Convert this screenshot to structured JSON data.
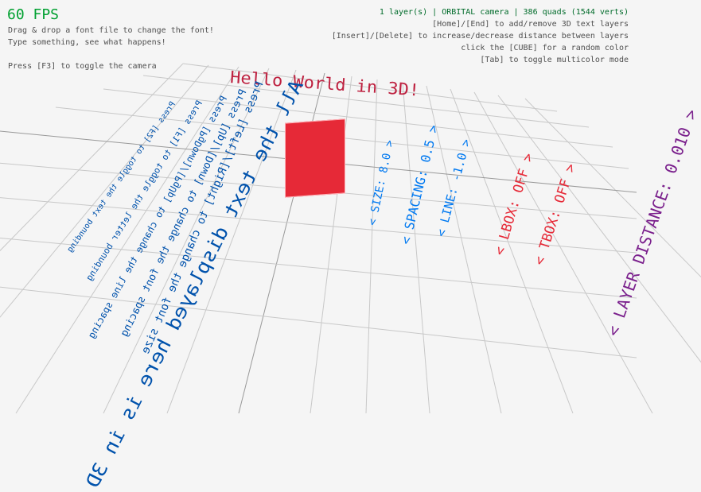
{
  "hud": {
    "fps": "60 FPS",
    "help_left": [
      "Drag & drop a font file to change the font!",
      "Type something, see what happens!",
      "Press [F3] to toggle the camera"
    ],
    "status": "1 layer(s) | ORBITAL camera |  386 quads (1544 verts)",
    "help_right": [
      "[Home]/[End] to add/remove 3D text layers",
      "[Insert]/[Delete] to increase/decrease distance between layers",
      "click the [CUBE] for a random color",
      "[Tab] to toggle multicolor mode"
    ]
  },
  "scene": {
    "title_text": "Hello World in 3D!",
    "main_text": "All the text displayed here is in 3D",
    "instructions": [
      "Press [F2] to toggle the text bounding",
      "Press [F1] to toggle the letter bounding",
      "Press [PgDown]/[PgUp] to change the line spacing",
      "Press [Up]/[Down] to change the font spacing",
      "Press [Left]/[Right] to change the font size"
    ],
    "settings": [
      {
        "label": "< SIZE: 8.0 >",
        "color": "#0079f1"
      },
      {
        "label": "< SPACING: 0.5 >",
        "color": "#0079f1"
      },
      {
        "label": "< LINE: -1.0 >",
        "color": "#0079f1"
      },
      {
        "label": "< LBOX: OFF >",
        "color": "#e62937"
      },
      {
        "label": "< TBOX: OFF >",
        "color": "#e62937"
      },
      {
        "label": "< LAYER DISTANCE: 0.010 >",
        "color": "#7a1f8c"
      }
    ],
    "cube_color": "#e62937",
    "title_color": "#be2140",
    "text_color": "#0052ac"
  }
}
